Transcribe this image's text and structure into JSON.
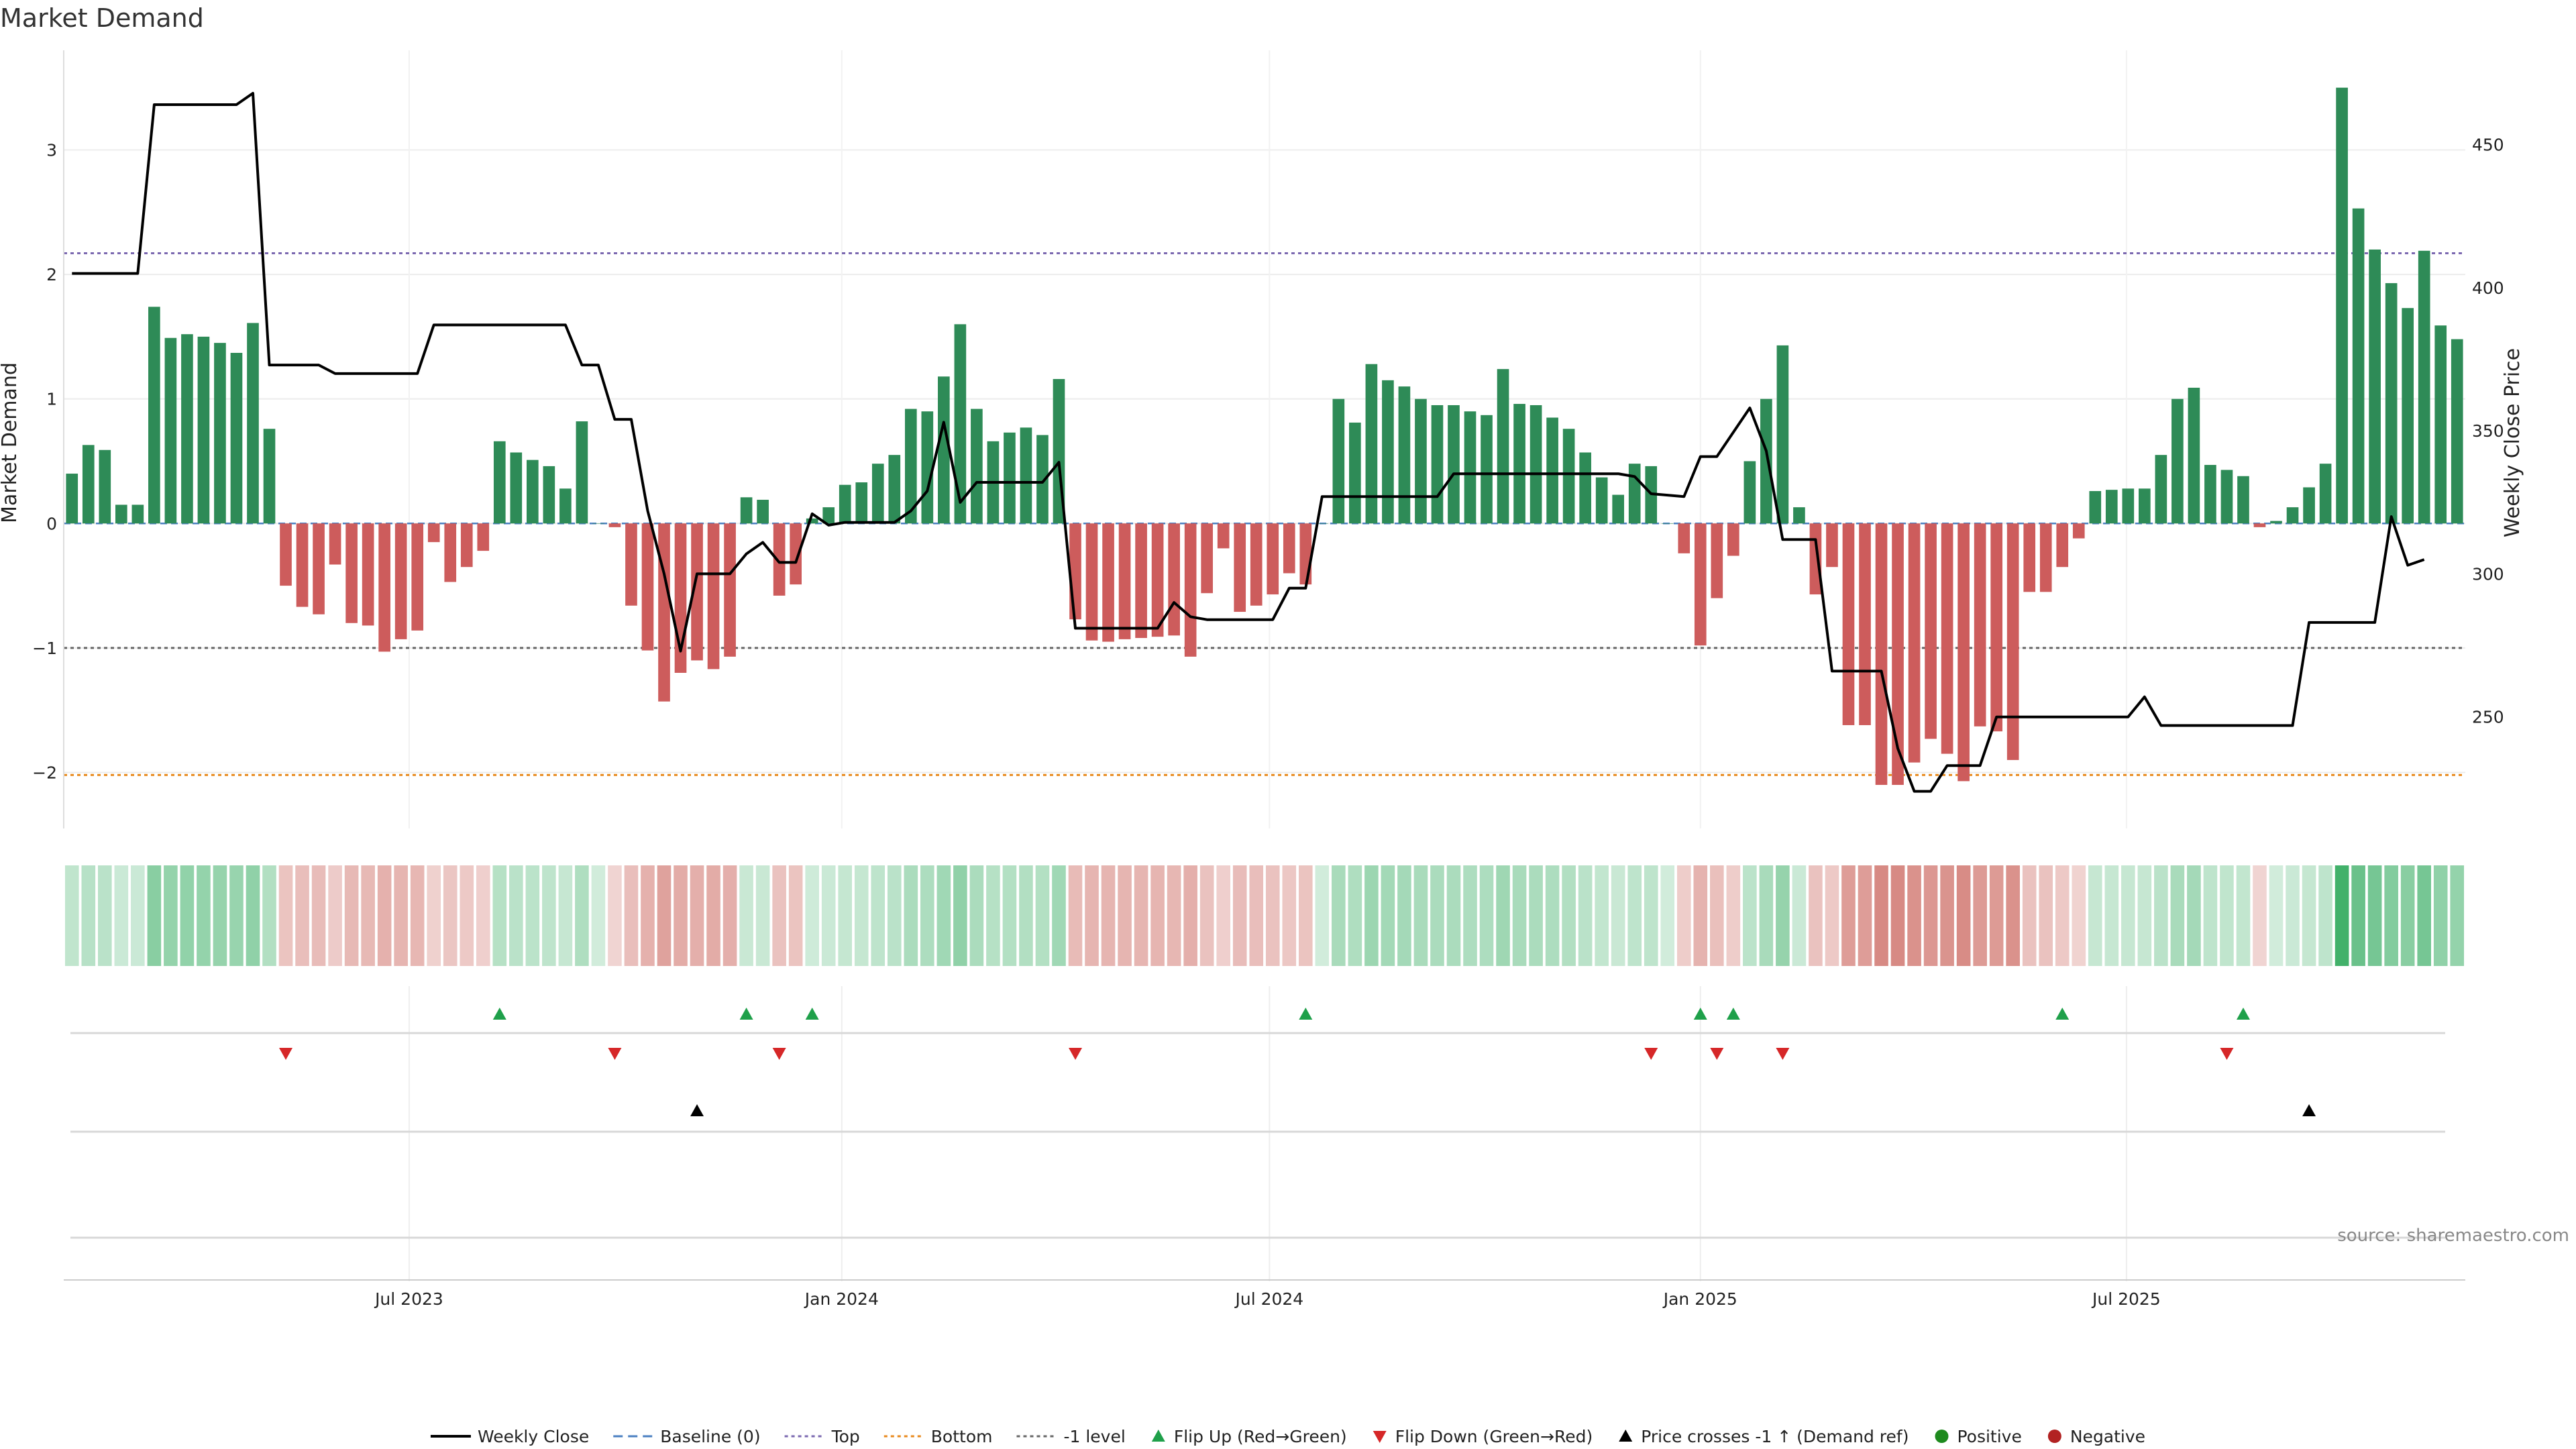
{
  "chart_data": {
    "type": "bar",
    "title": "Market Demand",
    "ylabel": "Market Demand",
    "y2label": "Weekly Close Price",
    "ylim": [
      -2.45,
      3.8
    ],
    "y2lim": [
      211,
      483
    ],
    "yticks": [
      {
        "value": 3,
        "label": "3"
      },
      {
        "value": 2,
        "label": "2"
      },
      {
        "value": 1,
        "label": "1"
      },
      {
        "value": 0,
        "label": "0"
      },
      {
        "value": -1,
        "label": "−1"
      },
      {
        "value": -2,
        "label": "−2"
      }
    ],
    "y2ticks": [
      {
        "value": 450,
        "label": "450"
      },
      {
        "value": 400,
        "label": "400"
      },
      {
        "value": 350,
        "label": "350"
      },
      {
        "value": 300,
        "label": "300"
      },
      {
        "value": 250,
        "label": "250"
      }
    ],
    "xticks": [
      {
        "index": 20.5,
        "label": "Jul 2023"
      },
      {
        "index": 46.8,
        "label": "Jan 2024"
      },
      {
        "index": 72.8,
        "label": "Jul 2024"
      },
      {
        "index": 99.0,
        "label": "Jan 2025"
      },
      {
        "index": 124.9,
        "label": "Jul 2025"
      }
    ],
    "reference_lines": {
      "top": 2.17,
      "bottom": -2.02,
      "minus_one": -1.0,
      "baseline": 0
    },
    "demand": [
      0.4,
      0.63,
      0.59,
      0.15,
      0.15,
      1.74,
      1.49,
      1.52,
      1.5,
      1.45,
      1.37,
      1.61,
      0.76,
      -0.5,
      -0.67,
      -0.73,
      -0.33,
      -0.8,
      -0.82,
      -1.03,
      -0.93,
      -0.86,
      -0.15,
      -0.47,
      -0.35,
      -0.22,
      0.66,
      0.57,
      0.51,
      0.46,
      0.28,
      0.82,
      0,
      -0.03,
      -0.66,
      -1.02,
      -1.43,
      -1.2,
      -1.1,
      -1.17,
      -1.07,
      0.21,
      0.19,
      -0.58,
      -0.49,
      0.04,
      0.13,
      0.31,
      0.33,
      0.48,
      0.55,
      0.92,
      0.9,
      1.18,
      1.6,
      0.92,
      0.66,
      0.73,
      0.77,
      0.71,
      1.16,
      -0.77,
      -0.94,
      -0.95,
      -0.93,
      -0.92,
      -0.91,
      -0.9,
      -1.07,
      -0.56,
      -0.2,
      -0.71,
      -0.66,
      -0.57,
      -0.4,
      -0.49,
      0,
      1.0,
      0.81,
      1.28,
      1.15,
      1.1,
      1.0,
      0.95,
      0.95,
      0.9,
      0.87,
      1.24,
      0.96,
      0.95,
      0.85,
      0.76,
      0.57,
      0.37,
      0.23,
      0.48,
      0.46,
      0,
      -0.24,
      -0.98,
      -0.6,
      -0.26,
      0.5,
      1.0,
      1.43,
      0.13,
      -0.57,
      -0.35,
      -1.62,
      -1.62,
      -2.1,
      -2.1,
      -1.92,
      -1.73,
      -1.85,
      -2.07,
      -1.63,
      -1.67,
      -1.9,
      -0.55,
      -0.55,
      -0.35,
      -0.12,
      0.26,
      0.27,
      0.28,
      0.28,
      0.55,
      1.0,
      1.09,
      0.47,
      0.43,
      0.38,
      -0.03,
      0.02,
      0.13,
      0.29,
      0.48,
      3.5,
      2.53,
      2.2,
      1.93,
      1.73,
      2.19,
      1.59,
      1.48
    ],
    "weekly_close": [
      {
        "i": 0,
        "v": 405
      },
      {
        "i": 4,
        "v": 405
      },
      {
        "i": 5,
        "v": 464
      },
      {
        "i": 10,
        "v": 464
      },
      {
        "i": 11,
        "v": 468
      },
      {
        "i": 12,
        "v": 373
      },
      {
        "i": 15,
        "v": 373
      },
      {
        "i": 16,
        "v": 370
      },
      {
        "i": 21,
        "v": 370
      },
      {
        "i": 22,
        "v": 387
      },
      {
        "i": 30,
        "v": 387
      },
      {
        "i": 31,
        "v": 373
      },
      {
        "i": 32,
        "v": 373
      },
      {
        "i": 33,
        "v": 354
      },
      {
        "i": 34,
        "v": 354
      },
      {
        "i": 35,
        "v": 322
      },
      {
        "i": 36,
        "v": 300
      },
      {
        "i": 37,
        "v": 273
      },
      {
        "i": 38,
        "v": 300
      },
      {
        "i": 40,
        "v": 300
      },
      {
        "i": 41,
        "v": 307
      },
      {
        "i": 42,
        "v": 311
      },
      {
        "i": 43,
        "v": 304
      },
      {
        "i": 44,
        "v": 304
      },
      {
        "i": 45,
        "v": 321
      },
      {
        "i": 46,
        "v": 317
      },
      {
        "i": 47,
        "v": 318
      },
      {
        "i": 50,
        "v": 318
      },
      {
        "i": 51,
        "v": 322
      },
      {
        "i": 52,
        "v": 329
      },
      {
        "i": 53,
        "v": 353
      },
      {
        "i": 54,
        "v": 325
      },
      {
        "i": 55,
        "v": 332
      },
      {
        "i": 59,
        "v": 332
      },
      {
        "i": 60,
        "v": 339
      },
      {
        "i": 61,
        "v": 281
      },
      {
        "i": 66,
        "v": 281
      },
      {
        "i": 67,
        "v": 290
      },
      {
        "i": 68,
        "v": 285
      },
      {
        "i": 69,
        "v": 284
      },
      {
        "i": 73,
        "v": 284
      },
      {
        "i": 74,
        "v": 295
      },
      {
        "i": 75,
        "v": 295
      },
      {
        "i": 76,
        "v": 327
      },
      {
        "i": 83,
        "v": 327
      },
      {
        "i": 84,
        "v": 335
      },
      {
        "i": 94,
        "v": 335
      },
      {
        "i": 95,
        "v": 334
      },
      {
        "i": 96,
        "v": 328
      },
      {
        "i": 98,
        "v": 327
      },
      {
        "i": 99,
        "v": 341
      },
      {
        "i": 100,
        "v": 341
      },
      {
        "i": 102,
        "v": 358
      },
      {
        "i": 103,
        "v": 343
      },
      {
        "i": 104,
        "v": 312
      },
      {
        "i": 106,
        "v": 312
      },
      {
        "i": 107,
        "v": 266
      },
      {
        "i": 110,
        "v": 266
      },
      {
        "i": 111,
        "v": 239
      },
      {
        "i": 112,
        "v": 224
      },
      {
        "i": 113,
        "v": 224
      },
      {
        "i": 114,
        "v": 233
      },
      {
        "i": 116,
        "v": 233
      },
      {
        "i": 117,
        "v": 250
      },
      {
        "i": 125,
        "v": 250
      },
      {
        "i": 126,
        "v": 257
      },
      {
        "i": 127,
        "v": 247
      },
      {
        "i": 135,
        "v": 247
      },
      {
        "i": 136,
        "v": 283
      },
      {
        "i": 140,
        "v": 283
      },
      {
        "i": 141,
        "v": 320
      },
      {
        "i": 142,
        "v": 303
      },
      {
        "i": 143,
        "v": 305
      }
    ],
    "flip_up_indices": [
      26,
      41,
      45,
      75,
      99,
      101,
      121,
      132
    ],
    "flip_down_indices": [
      13,
      33,
      43,
      61,
      96,
      100,
      104,
      131
    ],
    "price_cross_indices": [
      38,
      136
    ],
    "legend": [
      {
        "label": "Weekly Close",
        "kind": "line",
        "color": "#000000"
      },
      {
        "label": "Baseline (0)",
        "kind": "dash",
        "color": "#4a7fc1"
      },
      {
        "label": "Top",
        "kind": "dot",
        "color": "#7b68b0"
      },
      {
        "label": "Bottom",
        "kind": "dot",
        "color": "#e8891c"
      },
      {
        "label": "-1 level",
        "kind": "dot",
        "color": "#666666"
      },
      {
        "label": "Flip Up (Red→Green)",
        "kind": "tri-up",
        "color": "#1fa04a"
      },
      {
        "label": "Flip Down (Green→Red)",
        "kind": "tri-down",
        "color": "#d62728"
      },
      {
        "label": "Price crosses -1 ↑ (Demand ref)",
        "kind": "tri-up",
        "color": "#000000"
      },
      {
        "label": "Positive",
        "kind": "dot-marker",
        "color": "#1e8a1e"
      },
      {
        "label": "Negative",
        "kind": "dot-marker",
        "color": "#b22222"
      }
    ]
  },
  "source": "source: sharemaestro.com",
  "colors": {
    "positive_bar": "#2e8b57",
    "negative_bar": "#cd5c5c",
    "heat_positive": "#2da85a",
    "heat_negative": "#c0463c"
  }
}
